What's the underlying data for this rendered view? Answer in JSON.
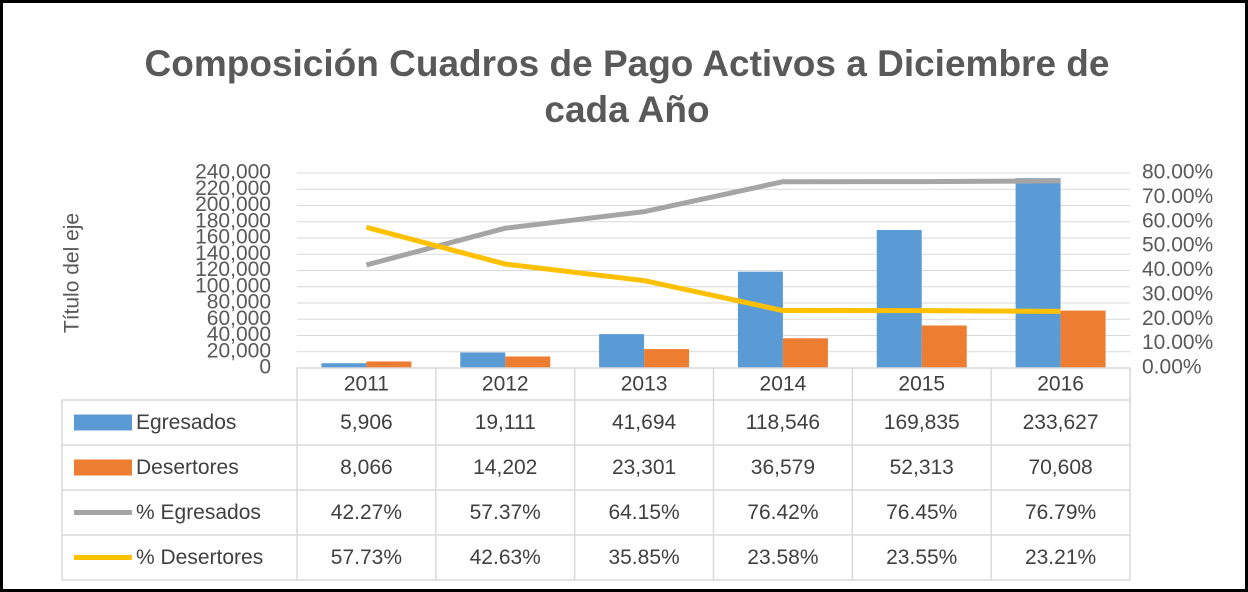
{
  "chart_data": {
    "type": "bar",
    "title": "Composición Cuadros de Pago Activos a Diciembre de cada Año",
    "ylabel": "Título del eje",
    "categories": [
      "2011",
      "2012",
      "2013",
      "2014",
      "2015",
      "2016"
    ],
    "series": [
      {
        "name": "Egresados",
        "type": "bar",
        "color": "#5b9bd5",
        "values": [
          5906,
          19111,
          41694,
          118546,
          169835,
          233627
        ],
        "value_labels": [
          "5,906",
          "19,111",
          "41,694",
          "118,546",
          "169,835",
          "233,627"
        ]
      },
      {
        "name": "Desertores",
        "type": "bar",
        "color": "#ed7d31",
        "values": [
          8066,
          14202,
          23301,
          36579,
          52313,
          70608
        ],
        "value_labels": [
          "8,066",
          "14,202",
          "23,301",
          "36,579",
          "52,313",
          "70,608"
        ]
      },
      {
        "name": "% Egresados",
        "type": "line",
        "axis": "y2",
        "color": "#a5a5a5",
        "values": [
          42.27,
          57.37,
          64.15,
          76.42,
          76.45,
          76.79
        ],
        "value_labels": [
          "42.27%",
          "57.37%",
          "64.15%",
          "76.42%",
          "76.45%",
          "76.79%"
        ]
      },
      {
        "name": "% Desertores",
        "type": "line",
        "axis": "y2",
        "color": "#ffc000",
        "values": [
          57.73,
          42.63,
          35.85,
          23.58,
          23.55,
          23.21
        ],
        "value_labels": [
          "57.73%",
          "42.63%",
          "35.85%",
          "23.58%",
          "23.55%",
          "23.21%"
        ]
      }
    ],
    "ylim": [
      0,
      240000
    ],
    "yticks": [
      0,
      {
        "value": 20000,
        "label": "20,000"
      },
      {
        "value": 40000,
        "label": "40,000"
      },
      {
        "value": 60000,
        "label": "60,000"
      },
      {
        "value": 80000,
        "label": "80,000"
      },
      {
        "value": 100000,
        "label": "100,000"
      },
      {
        "value": 120000,
        "label": "120,000"
      },
      {
        "value": 140000,
        "label": "140,000"
      },
      {
        "value": 160000,
        "label": "160,000"
      },
      {
        "value": 180000,
        "label": "180,000"
      },
      {
        "value": 200000,
        "label": "200,000"
      },
      {
        "value": 220000,
        "label": "220,000"
      },
      {
        "value": 240000,
        "label": "240,000"
      }
    ],
    "y2lim": [
      0,
      80
    ],
    "y2ticks": [
      {
        "value": 0,
        "label": "0.00%"
      },
      {
        "value": 10,
        "label": "10.00%"
      },
      {
        "value": 20,
        "label": "20.00%"
      },
      {
        "value": 30,
        "label": "30.00%"
      },
      {
        "value": 40,
        "label": "40.00%"
      },
      {
        "value": 50,
        "label": "50.00%"
      },
      {
        "value": 60,
        "label": "60.00%"
      },
      {
        "value": 70,
        "label": "70.00%"
      },
      {
        "value": 80,
        "label": "80.00%"
      }
    ],
    "grid": true,
    "data_table": true
  }
}
